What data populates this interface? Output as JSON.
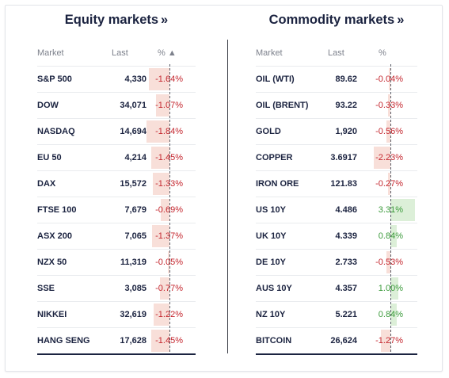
{
  "equity": {
    "title": "Equity markets",
    "title_arrow": "»",
    "col_market": "Market",
    "col_last": "Last",
    "col_pct": "% ▲",
    "rows": [
      {
        "name": "S&P 500",
        "last": "4,330",
        "pct": "-1.64%",
        "value": -1.64
      },
      {
        "name": "DOW",
        "last": "34,071",
        "pct": "-1.07%",
        "value": -1.07
      },
      {
        "name": "NASDAQ",
        "last": "14,694",
        "pct": "-1.84%",
        "value": -1.84
      },
      {
        "name": "EU 50",
        "last": "4,214",
        "pct": "-1.45%",
        "value": -1.45
      },
      {
        "name": "DAX",
        "last": "15,572",
        "pct": "-1.33%",
        "value": -1.33
      },
      {
        "name": "FTSE 100",
        "last": "7,679",
        "pct": "-0.69%",
        "value": -0.69
      },
      {
        "name": "ASX 200",
        "last": "7,065",
        "pct": "-1.37%",
        "value": -1.37
      },
      {
        "name": "NZX 50",
        "last": "11,319",
        "pct": "-0.05%",
        "value": -0.05
      },
      {
        "name": "SSE",
        "last": "3,085",
        "pct": "-0.77%",
        "value": -0.77
      },
      {
        "name": "NIKKEI",
        "last": "32,619",
        "pct": "-1.22%",
        "value": -1.22
      },
      {
        "name": "HANG SENG",
        "last": "17,628",
        "pct": "-1.45%",
        "value": -1.45
      }
    ]
  },
  "commodity": {
    "title": "Commodity markets",
    "title_arrow": "»",
    "col_market": "Market",
    "col_last": "Last",
    "col_pct": "%",
    "rows": [
      {
        "name": "OIL (WTI)",
        "last": "89.62",
        "pct": "-0.04%",
        "value": -0.04
      },
      {
        "name": "OIL (BRENT)",
        "last": "93.22",
        "pct": "-0.33%",
        "value": -0.33
      },
      {
        "name": "GOLD",
        "last": "1,920",
        "pct": "-0.56%",
        "value": -0.56
      },
      {
        "name": "COPPER",
        "last": "3.6917",
        "pct": "-2.23%",
        "value": -2.23
      },
      {
        "name": "IRON ORE",
        "last": "121.83",
        "pct": "-0.27%",
        "value": -0.27
      },
      {
        "name": "US 10Y",
        "last": "4.486",
        "pct": "3.31%",
        "value": 3.31
      },
      {
        "name": "UK 10Y",
        "last": "4.339",
        "pct": "0.84%",
        "value": 0.84
      },
      {
        "name": "DE 10Y",
        "last": "2.733",
        "pct": "-0.53%",
        "value": -0.53
      },
      {
        "name": "AUS 10Y",
        "last": "4.357",
        "pct": "1.00%",
        "value": 1.0
      },
      {
        "name": "NZ 10Y",
        "last": "5.221",
        "pct": "0.84%",
        "value": 0.84
      },
      {
        "name": "BITCOIN",
        "last": "26,624",
        "pct": "-1.27%",
        "value": -1.27
      }
    ]
  },
  "colors": {
    "negative_bar": "#f8dfd9",
    "positive_bar": "#dcefd8",
    "negative_text": "#c4262e",
    "positive_text": "#3a9a3a",
    "heading": "#1b2340"
  }
}
